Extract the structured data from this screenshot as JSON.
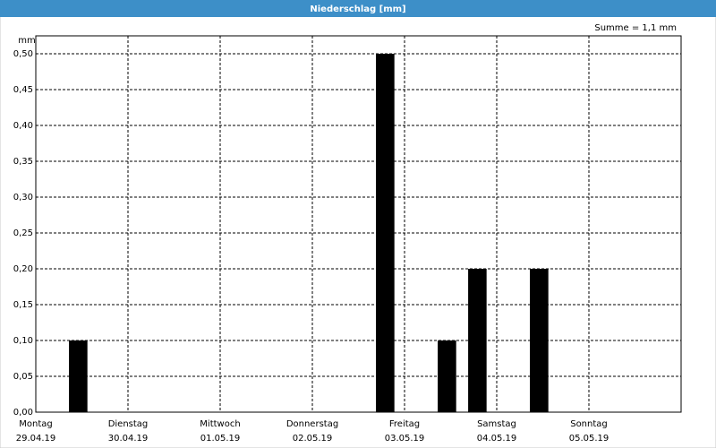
{
  "chart_data": {
    "type": "bar",
    "title": "Niederschlag [mm]",
    "summary": "Summe = 1,1 mm",
    "ylabel": "mm",
    "x": [
      0.46,
      3.79,
      4.46,
      4.79,
      5.46
    ],
    "values": [
      0.1,
      0.5,
      0.1,
      0.2,
      0.2
    ],
    "color": "#000000",
    "xlim": [
      0,
      7
    ],
    "xticks": [
      {
        "value": 0,
        "label": "Montag"
      },
      {
        "value": 1,
        "label": "Dienstag"
      },
      {
        "value": 2,
        "label": "Mittwoch"
      },
      {
        "value": 3,
        "label": "Donnerstag"
      },
      {
        "value": 4,
        "label": "Freitag"
      },
      {
        "value": 5,
        "label": "Samstag"
      },
      {
        "value": 6,
        "label": "Sonntag"
      },
      7
    ],
    "xtick_dates": [
      "29.04.19",
      "30.04.19",
      "01.05.19",
      "02.05.19",
      "03.05.19",
      "04.05.19",
      "05.05.19",
      null
    ],
    "ylim": [
      0,
      0.525
    ],
    "yticks": [
      {
        "value": 0,
        "label": "0,00"
      },
      {
        "value": 0.05,
        "label": "0,05"
      },
      {
        "value": 0.1,
        "label": "0,10"
      },
      {
        "value": 0.15,
        "label": "0,15"
      },
      {
        "value": 0.2,
        "label": "0,20"
      },
      {
        "value": 0.25,
        "label": "0,25"
      },
      {
        "value": 0.3,
        "label": "0,30"
      },
      {
        "value": 0.35,
        "label": "0,35"
      },
      {
        "value": 0.4,
        "label": "0,40"
      },
      {
        "value": 0.45,
        "label": "0,45"
      },
      {
        "value": 0.5,
        "label": "0,50"
      }
    ],
    "grid": true
  }
}
